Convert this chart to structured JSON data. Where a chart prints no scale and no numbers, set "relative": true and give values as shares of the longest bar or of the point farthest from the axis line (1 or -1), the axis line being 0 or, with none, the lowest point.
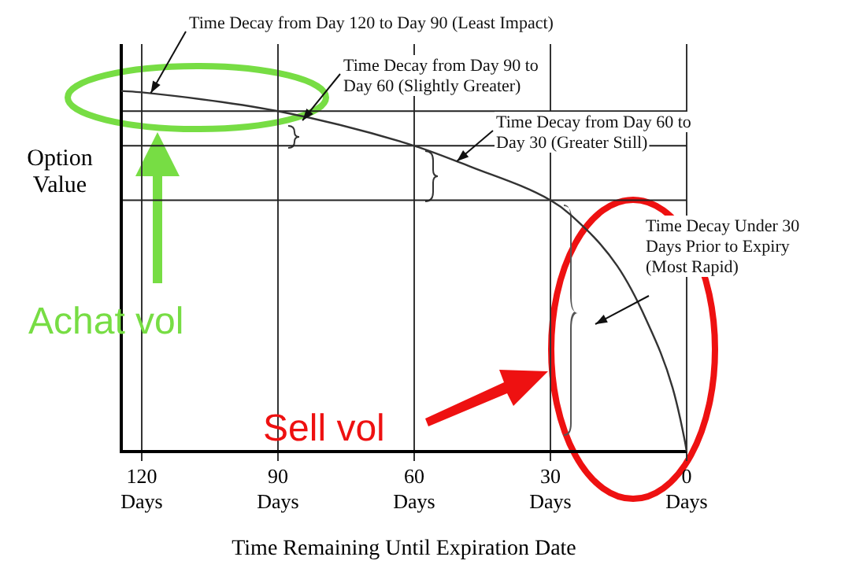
{
  "chart_data": {
    "type": "line",
    "relative": true,
    "xlabel": "Time Remaining Until Expiration Date",
    "ylabel": "Option Value",
    "xlim": [
      124.5,
      0
    ],
    "xticks": [
      {
        "value": 120,
        "label": "120 Days"
      },
      {
        "value": 90,
        "label": "90 Days"
      },
      {
        "value": 60,
        "label": "60 Days"
      },
      {
        "value": 30,
        "label": "30 Days"
      },
      {
        "value": 0,
        "label": "0 Days"
      }
    ],
    "grid": "x",
    "legend": false,
    "marker": "none",
    "line_style": "solid",
    "series": [
      {
        "color": "#333333",
        "x": [
          124.5,
          120,
          90,
          60,
          47.6,
          30,
          25.7,
          15.3,
          9,
          3.1,
          0.35,
          0
        ],
        "values": [
          1,
          0.996,
          0.944,
          0.848,
          0.79,
          0.697,
          0.658,
          0.515,
          0.368,
          0.177,
          0.026,
          0
        ]
      }
    ],
    "ref_lines": [
      {
        "axis": "y",
        "value": 0.944
      },
      {
        "axis": "y",
        "value": 0.848
      },
      {
        "axis": "y",
        "value": 0.697
      }
    ],
    "annotations": [
      {
        "text": "Time Decay from Day 120 to Day 90 (Least Impact)",
        "x": 118,
        "y": 0.994
      },
      {
        "text": "Time Decay from Day 90 to Day 60 (Slightly Greater)",
        "x": 84.6,
        "y": 0.918
      },
      {
        "text": "Time Decay from Day 60 to Day 30 (Greater Still)",
        "x": 50.6,
        "y": 0.805
      },
      "Time Decay Under 30 Days Prior to Expiry (Most Rapid)",
      "Achat vol",
      "Sell vol"
    ]
  }
}
